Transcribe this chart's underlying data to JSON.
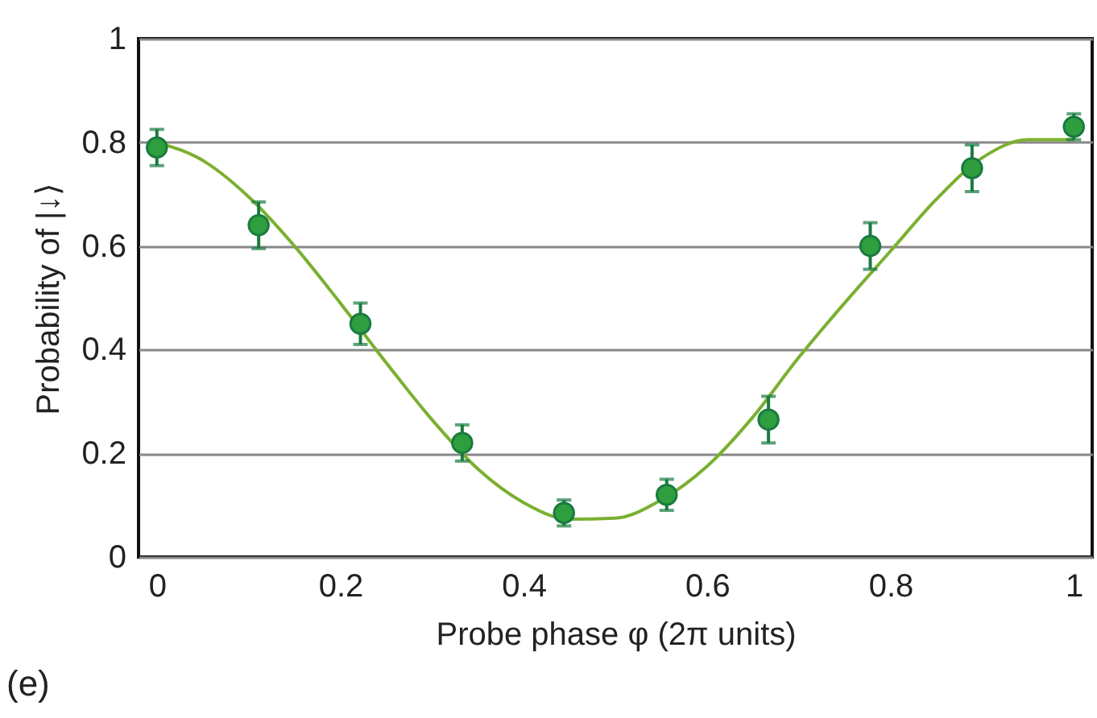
{
  "chart_data": {
    "type": "scatter",
    "xlabel": "Probe phase φ (2π units)",
    "ylabel": "Probability of |↓⟩",
    "annotations": [
      "(e)"
    ],
    "xlim": [
      -0.02,
      1.02
    ],
    "ylim": [
      0,
      1
    ],
    "xticks": [
      0,
      0.2,
      0.4,
      0.6,
      0.8,
      1
    ],
    "yticks": [
      0,
      0.2,
      0.4,
      0.6,
      0.8,
      1
    ],
    "grid": "y",
    "series": [
      {
        "type": "line",
        "color": "#7ab030",
        "x": [
          0,
          0.05,
          0.1,
          0.15,
          0.2,
          0.25,
          0.3,
          0.35,
          0.4,
          0.45,
          0.5,
          0.55,
          0.6,
          0.65,
          0.7,
          0.75,
          0.8,
          0.85,
          0.9,
          0.95,
          1.0
        ],
        "values": [
          0.8,
          0.765,
          0.695,
          0.6,
          0.49,
          0.375,
          0.265,
          0.17,
          0.105,
          0.073,
          0.075,
          0.11,
          0.175,
          0.27,
          0.385,
          0.49,
          0.59,
          0.69,
          0.77,
          0.805,
          0.805
        ]
      },
      {
        "marker": "circle",
        "color": "#2e9e3e",
        "x": [
          0,
          0.111,
          0.222,
          0.333,
          0.444,
          0.556,
          0.667,
          0.778,
          0.889,
          1
        ],
        "values": [
          0.79,
          0.64,
          0.45,
          0.22,
          0.085,
          0.12,
          0.265,
          0.6,
          0.75,
          0.83
        ],
        "errors": [
          0.035,
          0.045,
          0.04,
          0.035,
          0.025,
          0.03,
          0.045,
          0.045,
          0.045,
          0.025
        ]
      }
    ]
  }
}
